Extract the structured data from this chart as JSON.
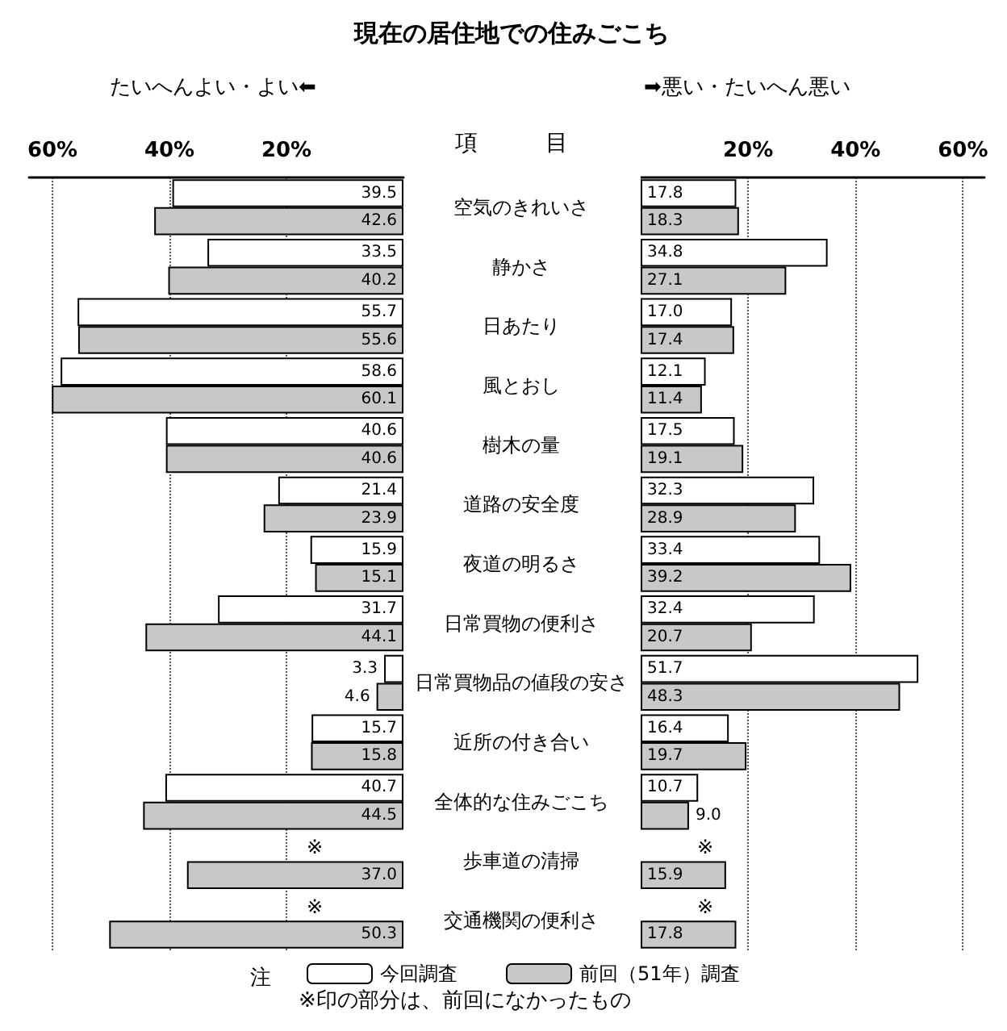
{
  "chart_data": [
    {
      "type": "bar",
      "orientation": "horizontal",
      "title": "現在の居住地での住みごこち",
      "xlabel": "たいへんよい・よい⬅",
      "categories": [
        "空気のきれいさ",
        "静かさ",
        "日あたり",
        "風とおし",
        "樹木の量",
        "道路の安全度",
        "夜道の明るさ",
        "日常買物の便利さ",
        "日常買物品の値段の安さ",
        "近所の付き合い",
        "全体的な住みごこち",
        "歩車道の清掃",
        "交通機関の便利さ"
      ],
      "series": [
        {
          "name": "今回調査",
          "color": "#ffffff",
          "values": [
            39.5,
            33.5,
            55.7,
            58.6,
            40.6,
            21.4,
            15.9,
            31.7,
            3.3,
            15.7,
            40.7,
            null,
            null
          ],
          "value_labels": [
            "39.5",
            "33.5",
            "55.7",
            "58.6",
            "40.6",
            "21.4",
            "15.9",
            "31.7",
            "3.3",
            "15.7",
            "40.7",
            "※",
            "※"
          ]
        },
        {
          "name": "前回（51年）調査",
          "color": "#c8c8c8",
          "values": [
            42.6,
            40.2,
            55.6,
            60.1,
            40.6,
            23.9,
            15.1,
            44.1,
            4.6,
            15.8,
            44.5,
            37.0,
            50.3
          ],
          "value_labels": [
            "42.6",
            "40.2",
            "55.6",
            "60.1",
            "40.6",
            "23.9",
            "15.1",
            "44.1",
            "4.6",
            "15.8",
            "44.5",
            "37.0",
            "50.3"
          ]
        }
      ],
      "xlim": [
        64,
        0
      ],
      "xticks": [
        {
          "value": 60,
          "label": "60%"
        },
        {
          "value": 40,
          "label": "40%"
        },
        {
          "value": 20,
          "label": "20%"
        }
      ],
      "grid": "x",
      "legend": "bottom",
      "annotations": [
        "項　　　目",
        "注",
        "※印の部分は、前回になかったもの"
      ]
    },
    {
      "type": "bar",
      "orientation": "horizontal",
      "xlabel": "➡悪い・たいへん悪い",
      "categories": [
        null,
        null,
        null,
        null,
        null,
        null,
        null,
        null,
        null,
        null,
        null,
        null,
        null
      ],
      "series": [
        {
          "color": "#ffffff",
          "values": [
            17.8,
            34.8,
            17.0,
            12.1,
            17.5,
            32.3,
            33.4,
            32.4,
            51.7,
            16.4,
            10.7,
            null,
            null
          ],
          "value_labels": [
            "17.8",
            "34.8",
            "17.0",
            "12.1",
            "17.5",
            "32.3",
            "33.4",
            "32.4",
            "51.7",
            "16.4",
            "10.7",
            "※",
            "※"
          ]
        },
        {
          "color": "#c8c8c8",
          "values": [
            18.3,
            27.1,
            17.4,
            11.4,
            19.1,
            28.9,
            39.2,
            20.7,
            48.3,
            19.7,
            9.0,
            15.9,
            17.8
          ],
          "value_labels": [
            "18.3",
            "27.1",
            "17.4",
            "11.4",
            "19.1",
            "28.9",
            "39.2",
            "20.7",
            "48.3",
            "19.7",
            "9.0",
            "15.9",
            "17.8"
          ]
        }
      ],
      "xlim": [
        0,
        64
      ],
      "xticks": [
        {
          "value": 20,
          "label": "20%"
        },
        {
          "value": 40,
          "label": "40%"
        },
        {
          "value": 60,
          "label": "60%"
        }
      ],
      "grid": "x",
      "legend": false,
      "tick_labels": "x"
    }
  ]
}
